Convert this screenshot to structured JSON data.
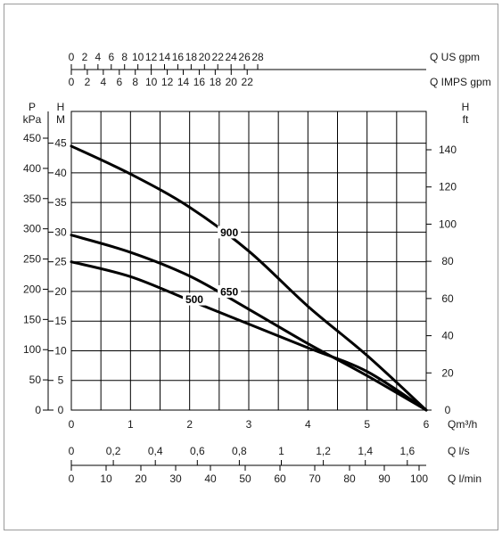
{
  "chart_data": {
    "type": "line",
    "x_axes": {
      "q_us_gpm": {
        "label": "Q US gpm",
        "ticks": [
          "0",
          "2",
          "4",
          "6",
          "8",
          "10",
          "12",
          "14",
          "16",
          "18",
          "20",
          "22",
          "24",
          "26",
          "28"
        ]
      },
      "q_imps_gpm": {
        "label": "Q IMPS gpm",
        "ticks": [
          "0",
          "2",
          "4",
          "6",
          "8",
          "10",
          "12",
          "14",
          "16",
          "18",
          "20",
          "22"
        ]
      },
      "q_m3h": {
        "label": "Qm³/h",
        "ticks": [
          "0",
          "1",
          "2",
          "3",
          "4",
          "5",
          "6"
        ],
        "range": [
          0,
          6
        ]
      },
      "q_ls": {
        "label": "Q l/s",
        "ticks": [
          "0",
          "0,2",
          "0,4",
          "0,6",
          "0,8",
          "1",
          "1,2",
          "1,4",
          "1,6"
        ]
      },
      "q_lmin": {
        "label": "Q l/min",
        "ticks": [
          "0",
          "10",
          "20",
          "30",
          "40",
          "50",
          "60",
          "70",
          "80",
          "90",
          "100"
        ]
      }
    },
    "y_axes": {
      "p_kpa": {
        "label_top": "P",
        "label_unit": "kPa",
        "ticks": [
          "0",
          "50",
          "100",
          "150",
          "200",
          "250",
          "300",
          "350",
          "400",
          "450"
        ]
      },
      "h_m": {
        "label_top": "H",
        "label_unit": "M",
        "ticks": [
          "0",
          "5",
          "10",
          "15",
          "20",
          "25",
          "30",
          "35",
          "40",
          "45"
        ],
        "range": [
          0,
          47
        ]
      },
      "h_ft": {
        "label_top": "H",
        "label_unit": "ft",
        "ticks": [
          "0",
          "20",
          "40",
          "60",
          "80",
          "100",
          "120",
          "140"
        ]
      }
    },
    "grid": true,
    "series": [
      {
        "name": "900",
        "x": [
          0,
          1,
          2,
          3,
          4,
          5,
          6
        ],
        "y": [
          44.5,
          39.8,
          34.2,
          26.8,
          17.5,
          9.2,
          0
        ]
      },
      {
        "name": "650",
        "x": [
          0,
          1,
          2,
          3,
          4,
          5,
          6
        ],
        "y": [
          29.5,
          26.6,
          22.6,
          17.0,
          11.2,
          5.8,
          0
        ]
      },
      {
        "name": "500",
        "x": [
          0,
          1,
          2,
          3,
          4,
          5,
          6
        ],
        "y": [
          25.0,
          22.5,
          18.5,
          14.5,
          10.5,
          6.5,
          0
        ]
      }
    ],
    "labels": {
      "900": "900",
      "650": "650",
      "500": "500"
    }
  }
}
